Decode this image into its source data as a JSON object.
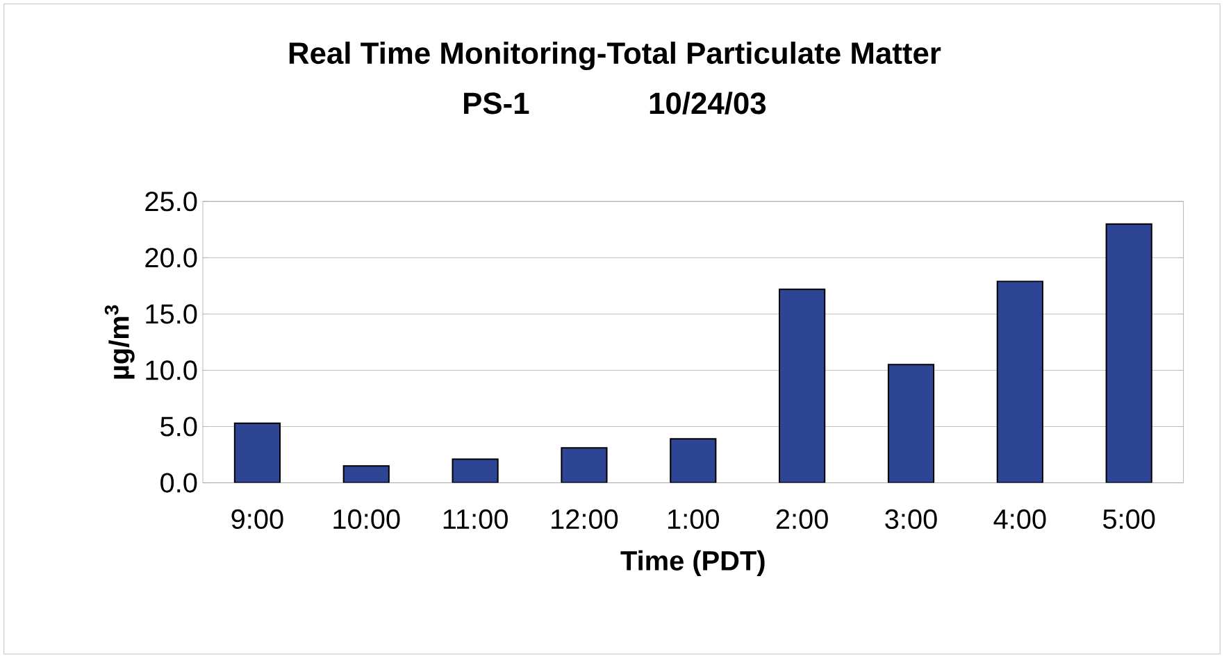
{
  "chart_data": {
    "type": "bar",
    "title": "Real Time Monitoring-Total Particulate Matter",
    "subtitle": "PS-1              10/24/03",
    "xlabel": "Time (PDT)",
    "ylabel": "µg/m$^{3}$",
    "categories": [
      "9:00",
      "10:00",
      "11:00",
      "12:00",
      "1:00",
      "2:00",
      "3:00",
      "4:00",
      "5:00"
    ],
    "values": [
      5.3,
      1.5,
      2.1,
      3.1,
      3.9,
      17.2,
      10.5,
      17.9,
      23.0
    ],
    "color": "#2e4595",
    "ylim": [
      0,
      25
    ],
    "yticks": [
      {
        "value": 0,
        "label": "0.0"
      },
      {
        "value": 5,
        "label": "5.0"
      },
      {
        "value": 10,
        "label": "10.0"
      },
      {
        "value": 15,
        "label": "15.0"
      },
      {
        "value": 20,
        "label": "20.0"
      },
      {
        "value": 25,
        "label": "25.0"
      }
    ],
    "grid": "y"
  }
}
